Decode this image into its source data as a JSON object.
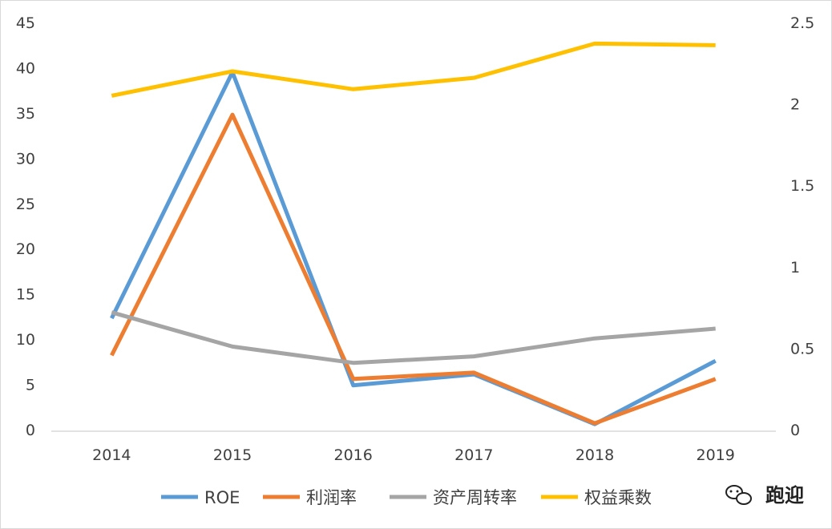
{
  "chart_data": {
    "type": "line",
    "categories": [
      "2014",
      "2015",
      "2016",
      "2017",
      "2018",
      "2019"
    ],
    "left_axis": {
      "ylim": [
        0,
        45
      ],
      "ticks": [
        "0",
        "5",
        "10",
        "15",
        "20",
        "25",
        "30",
        "35",
        "40",
        "45"
      ]
    },
    "right_axis": {
      "ylim": [
        0,
        2.5
      ],
      "ticks": [
        "0",
        "0.5",
        "1",
        "1.5",
        "2",
        "2.5"
      ]
    },
    "series": [
      {
        "name": "ROE",
        "axis": "left",
        "color": "#5b9bd5",
        "values": [
          12.3,
          39.5,
          4.9,
          6.1,
          0.6,
          7.6
        ]
      },
      {
        "name": "利润率",
        "axis": "left",
        "color": "#ed7d31",
        "values": [
          8.2,
          34.8,
          5.6,
          6.3,
          0.7,
          5.6
        ]
      },
      {
        "name": "资产周转率",
        "axis": "right",
        "color": "#a5a5a5",
        "values": [
          0.72,
          0.51,
          0.41,
          0.45,
          0.56,
          0.62
        ]
      },
      {
        "name": "权益乘数",
        "axis": "right",
        "color": "#ffc000",
        "values": [
          2.05,
          2.2,
          2.09,
          2.16,
          2.37,
          2.36
        ]
      }
    ],
    "grid": false,
    "legend_position": "bottom"
  },
  "watermark": {
    "text": "跑迎",
    "icon": "wechat-icon"
  }
}
